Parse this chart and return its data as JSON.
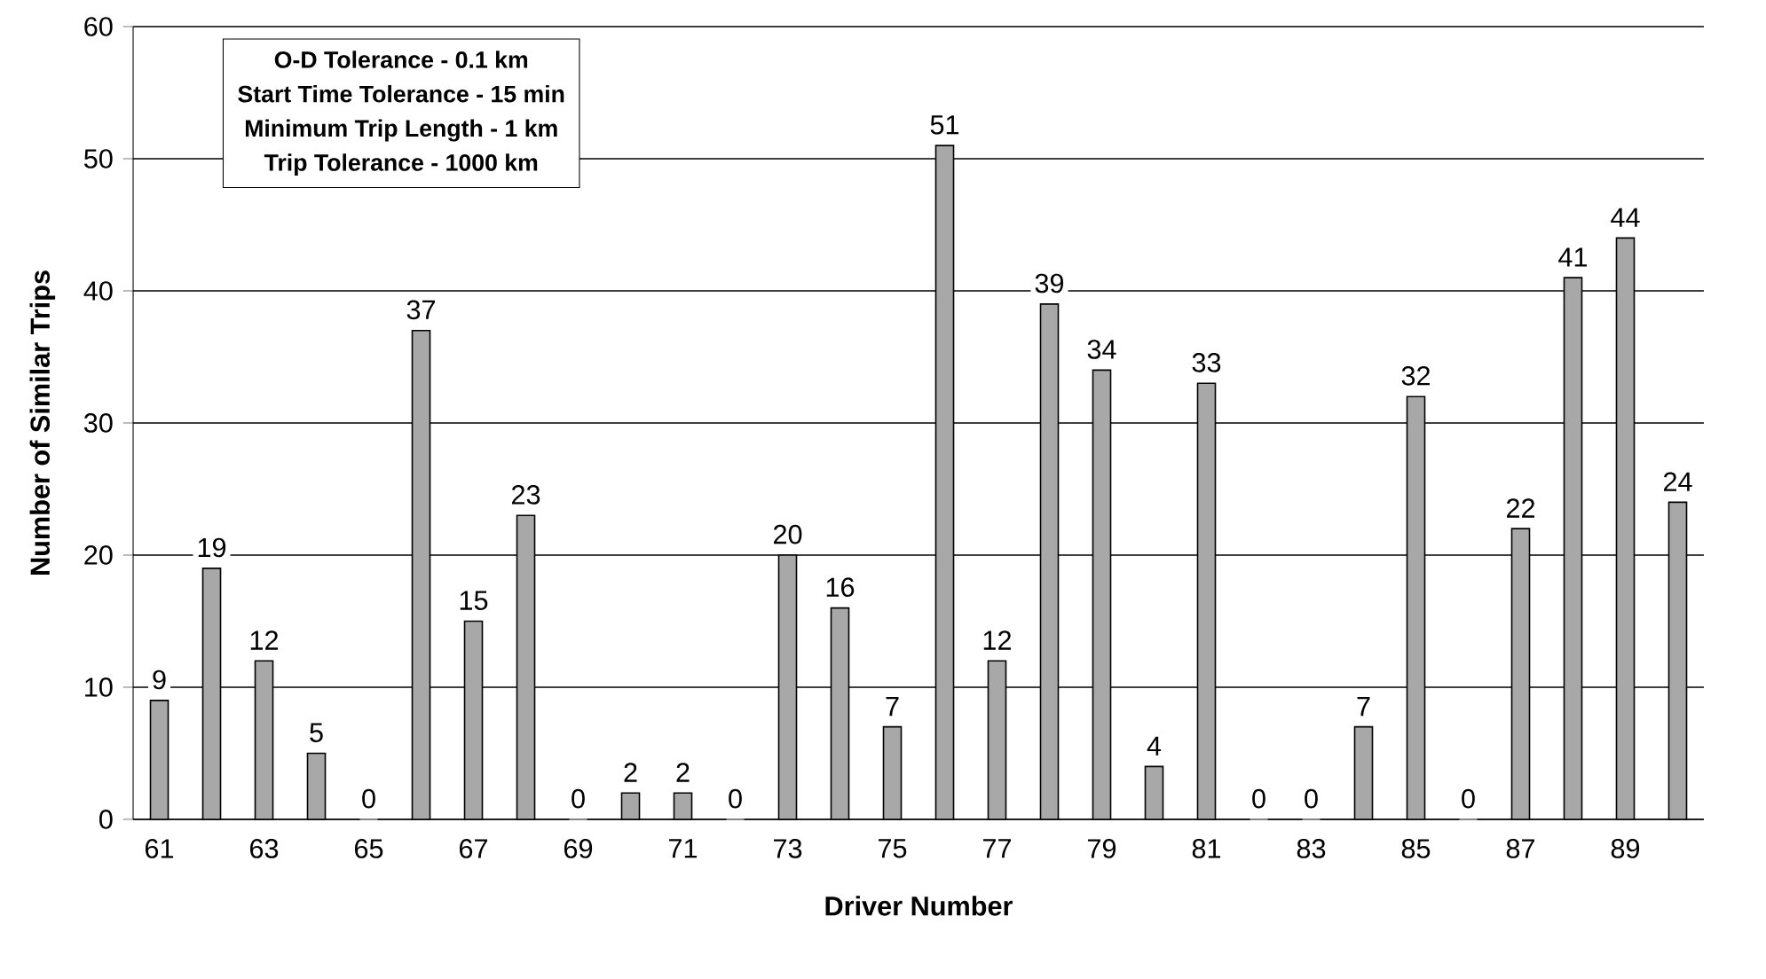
{
  "chart_data": {
    "type": "bar",
    "xlabel": "Driver Number",
    "ylabel": "Number of Similar Trips",
    "categories": [
      "61",
      null,
      "63",
      null,
      "65",
      null,
      "67",
      null,
      "69",
      null,
      "71",
      null,
      "73",
      null,
      "75",
      null,
      "77",
      null,
      "79",
      null,
      "81",
      null,
      "83",
      null,
      "85",
      null,
      "87",
      null,
      "89",
      null
    ],
    "values": [
      9,
      19,
      12,
      5,
      0,
      37,
      15,
      23,
      0,
      2,
      2,
      0,
      20,
      16,
      7,
      51,
      12,
      39,
      34,
      4,
      33,
      0,
      0,
      7,
      32,
      0,
      22,
      41,
      44,
      24
    ],
    "color": "#a8a8a8",
    "ylim": [
      0,
      60
    ],
    "yticks": [
      0,
      10,
      20,
      30,
      40,
      50,
      60
    ],
    "grid": "y",
    "data_labels": true,
    "annotations": [
      "O-D Tolerance - 0.1 km",
      "Start Time Tolerance - 15 min",
      "Minimum Trip Length - 1 km",
      "Trip Tolerance - 1000 km"
    ]
  }
}
